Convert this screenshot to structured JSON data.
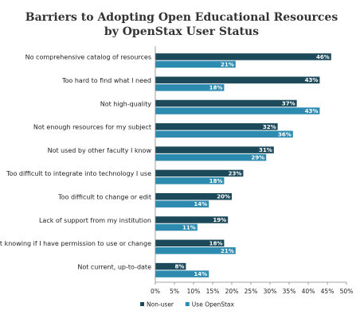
{
  "chart_data": {
    "type": "bar",
    "orientation": "horizontal",
    "title_lines": [
      "Barriers to Adopting Open Educational Resources",
      "by OpenStax User Status"
    ],
    "categories": [
      "No comprehensive catalog of resources",
      "Too hard to find what I need",
      "Not high-quality",
      "Not enough resources for my subject",
      "Not used by other faculty I know",
      "Too difficult to integrate into technology I use",
      "Too difficult to change or edit",
      "Lack of support from my institution",
      "Not knowing if I have permission to use or change",
      "Not current, up-to-date"
    ],
    "series": [
      {
        "name": "Non-user",
        "color": "#1d4a5a",
        "values": [
          46,
          43,
          37,
          32,
          31,
          23,
          20,
          19,
          18,
          8
        ]
      },
      {
        "name": "Use OpenStax",
        "color": "#2e8bb0",
        "values": [
          21,
          18,
          43,
          36,
          29,
          18,
          14,
          11,
          21,
          14
        ]
      }
    ],
    "xlim": [
      0,
      50
    ],
    "xticks": [
      0,
      5,
      10,
      15,
      20,
      25,
      30,
      35,
      40,
      45,
      50
    ],
    "tick_suffix": "%",
    "value_suffix": "%",
    "grid": false,
    "legend_position": "bottom"
  }
}
